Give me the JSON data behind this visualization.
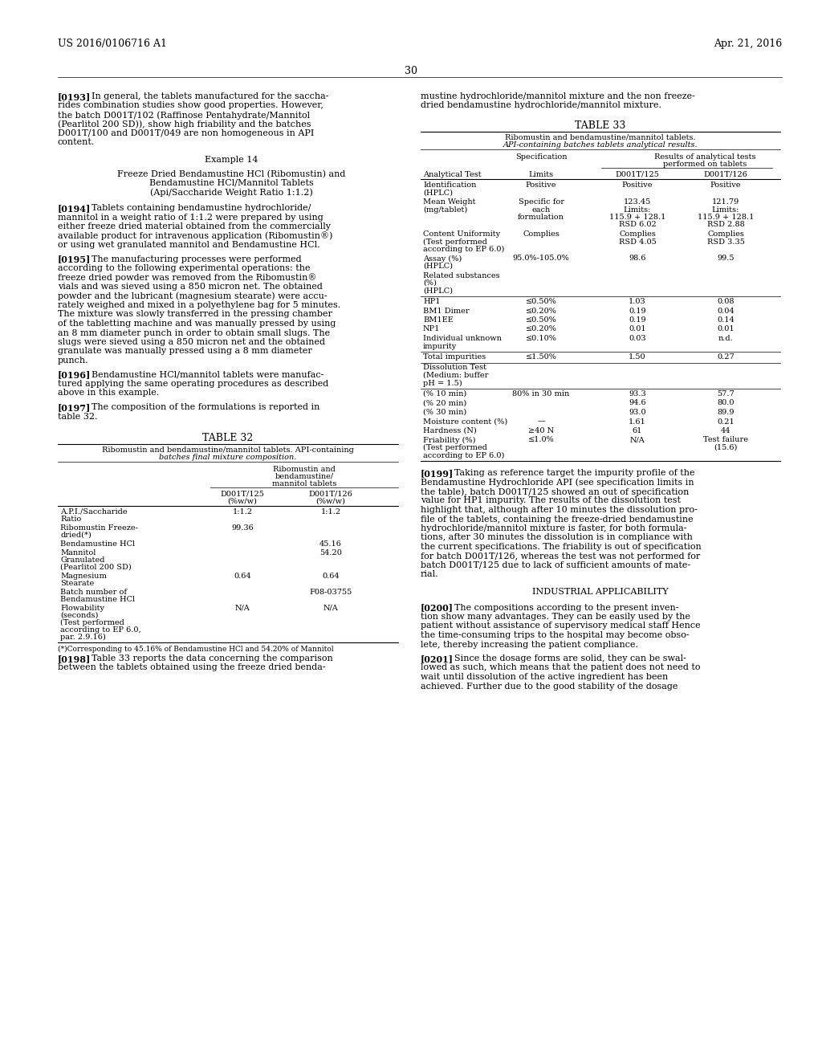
{
  "bg_color": "#ffffff",
  "header_left": "US 2016/0106716 A1",
  "header_right": "Apr. 21, 2016",
  "page_number": "30",
  "table32": {
    "title": "TABLE 32",
    "subtitle1": "Ribomustin and bendamustine/mannitol tablets. API-containing",
    "subtitle2": "batches final mixture composition.",
    "col_group1": "Ribomustin and",
    "col_group2": "bendamustine/",
    "col_group3": "mannitol tablets",
    "col_h1a": "D001T/125",
    "col_h1b": "(%w/w)",
    "col_h2a": "D001T/126",
    "col_h2b": "(%w/w)",
    "rows": [
      [
        "A.P.I./Saccharide",
        "Ratio",
        "",
        "",
        "",
        "1:1.2",
        "",
        "1:1.2"
      ],
      [
        "Ribomustin Freeze-",
        "dried(*)",
        "",
        "",
        "",
        "99.36",
        "",
        ""
      ],
      [
        "Bendamustine HCl",
        "",
        "",
        "",
        "",
        "",
        "",
        "45.16"
      ],
      [
        "Mannitol",
        "Granulated",
        "(Pearlitol 200 SD)",
        "",
        "",
        "",
        "",
        "54.20"
      ],
      [
        "Magnesium",
        "Stearate",
        "",
        "",
        "",
        "0.64",
        "",
        "0.64"
      ],
      [
        "Batch number of",
        "Bendamustine HCl",
        "",
        "",
        "",
        "",
        "",
        "F08-03755"
      ],
      [
        "Flowability",
        "(seconds)",
        "(Test performed",
        "according to EP 6.0,",
        "par. 2.9.16)",
        "",
        "N/A",
        "",
        "N/A"
      ]
    ],
    "footnote": "(*)Corresponding to 45.16% of Bendamustine HCl and 54.20% of Mannitol"
  },
  "table33": {
    "title": "TABLE 33",
    "subtitle1": "Ribomustin and bendamustine/mannitol tablets.",
    "subtitle2": "API-containing batches tablets analytical results.",
    "rows": [
      [
        "Identification",
        "(HPLC)",
        "Positive",
        "Positive",
        "Positive"
      ],
      [
        "Mean Weight",
        "(mg/tablet)",
        "Specific for",
        "123.45",
        "121.79"
      ],
      [
        "",
        "",
        "each",
        "Limits:",
        "Limits:"
      ],
      [
        "",
        "",
        "formulation",
        "115.9 + 128.1",
        "115.9 + 128.1"
      ],
      [
        "",
        "",
        "",
        "RSD 6.02",
        "RSD 2.88"
      ],
      [
        "Content Uniformity",
        "(Test performed",
        "Complies",
        "Complies",
        "Complies"
      ],
      [
        "according to EP 6.0)",
        "",
        "",
        "RSD 4.05",
        "RSD 3.35"
      ],
      [
        "Assay (%)",
        "(HPLC)",
        "95.0%-105.0%",
        "98.6",
        "99.5"
      ],
      [
        "Related substances",
        "(%)",
        "",
        "",
        ""
      ],
      [
        "(HPLC)",
        "",
        "",
        "",
        ""
      ],
      [
        "HP1",
        "",
        "≤0.50%",
        "1.03",
        "0.08"
      ],
      [
        "BM1 Dimer",
        "",
        "≤0.20%",
        "0.19",
        "0.04"
      ],
      [
        "BM1EE",
        "",
        "≤0.50%",
        "0.19",
        "0.14"
      ],
      [
        "NP1",
        "",
        "≤0.20%",
        "0.01",
        "0.01"
      ],
      [
        "Individual unknown",
        "impurity",
        "≤0.10%",
        "0.03",
        "n.d."
      ],
      [
        "Total impurities",
        "",
        "≤1.50%",
        "1.50",
        "0.27"
      ],
      [
        "Dissolution Test",
        "(Medium: buffer",
        "",
        "",
        ""
      ],
      [
        "pH = 1.5)",
        "",
        "",
        "",
        ""
      ],
      [
        "(% 10 min)",
        "",
        "80% in 30 min",
        "93.3",
        "57.7"
      ],
      [
        "(% 20 min)",
        "",
        "",
        "94.6",
        "80.0"
      ],
      [
        "(% 30 min)",
        "",
        "",
        "93.0",
        "89.9"
      ],
      [
        "Moisture content (%)",
        "",
        "—",
        "1.61",
        "0.21"
      ],
      [
        "Hardness (N)",
        "",
        "≥40 N",
        "61",
        "44"
      ],
      [
        "Friability (%)",
        "(Test performed",
        "≤1.0%",
        "N/A",
        "Test failure"
      ],
      [
        "according to EP 6.0)",
        "",
        "",
        "",
        "(15.6)"
      ]
    ]
  }
}
